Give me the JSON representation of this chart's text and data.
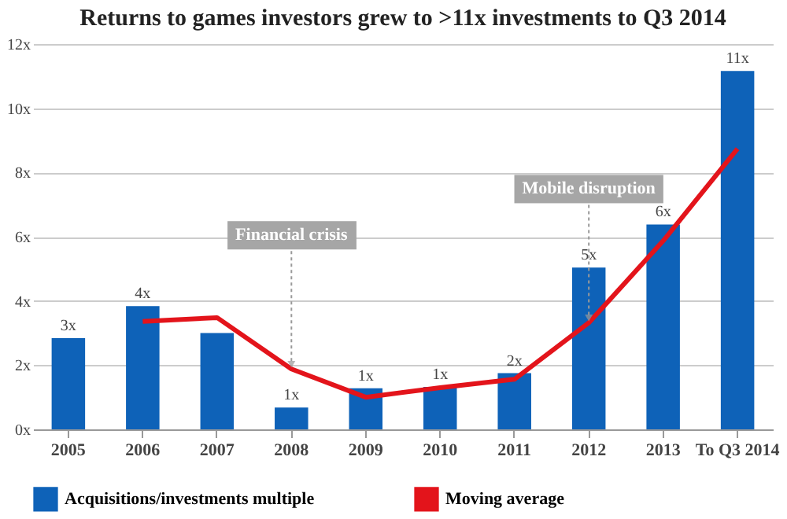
{
  "chart_data": {
    "type": "bar",
    "title": "Returns to games investors grew to >11x investments to Q3 2014",
    "categories": [
      "2005",
      "2006",
      "2007",
      "2008",
      "2009",
      "2010",
      "2011",
      "2012",
      "2013",
      "To Q3 2014"
    ],
    "series": [
      {
        "name": "Acquisitions/investments multiple",
        "color": "#0e62b8",
        "values": [
          2.84,
          3.84,
          3.0,
          0.68,
          1.28,
          1.32,
          1.75,
          5.04,
          6.38,
          11.16
        ],
        "value_labels": [
          "3x",
          "4x",
          null,
          "1x",
          "1x",
          "1x",
          "2x",
          "5x",
          "6x",
          "11x"
        ]
      },
      {
        "name": "Moving average",
        "type": "line",
        "color": "#e3141b",
        "values": [
          null,
          3.36,
          3.48,
          1.88,
          1.0,
          1.3,
          1.56,
          3.32,
          5.87,
          8.74
        ]
      }
    ],
    "ylim": [
      0,
      12
    ],
    "yticks": [
      {
        "value": 0,
        "label": "0x"
      },
      {
        "value": 2,
        "label": "2x"
      },
      {
        "value": 4,
        "label": "4x"
      },
      {
        "value": 6,
        "label": "6x"
      },
      {
        "value": 8,
        "label": "8x"
      },
      {
        "value": 10,
        "label": "10x"
      },
      {
        "value": 12,
        "label": "12x"
      }
    ],
    "annotations": [
      {
        "text": "Financial crisis",
        "x": "2008",
        "y": 1.88
      },
      {
        "text": "Mobile disruption",
        "x": "2012",
        "y": 3.32
      }
    ],
    "grid": "y",
    "legend": "bottom"
  }
}
